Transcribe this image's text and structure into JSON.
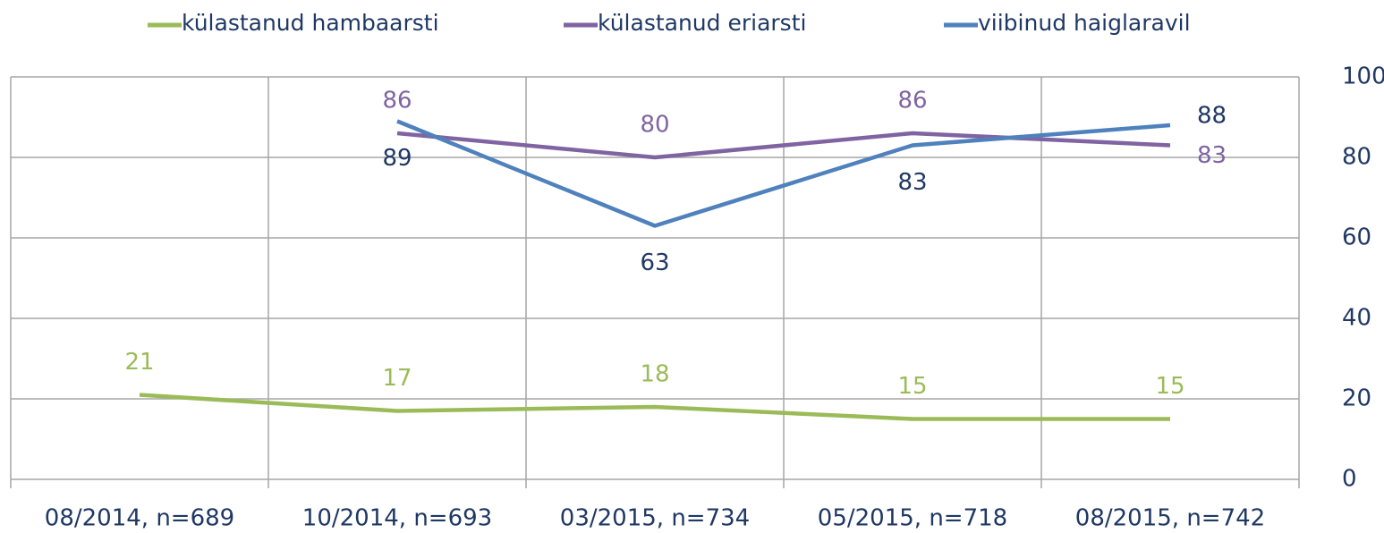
{
  "chart_data": {
    "type": "line",
    "categories": [
      "08/2014, n=689",
      "10/2014, n=693",
      "03/2015, n=734",
      "05/2015, n=718",
      "08/2015, n=742"
    ],
    "series": [
      {
        "name": "külastanud hambaarsti",
        "color": "#9bbb59",
        "values": [
          21,
          17,
          18,
          15,
          15
        ]
      },
      {
        "name": "külastanud eriarsti",
        "color": "#8064a2",
        "values": [
          null,
          86,
          80,
          86,
          83
        ]
      },
      {
        "name": "viibinud haiglaravil",
        "color": "#4f81bd",
        "values": [
          null,
          89,
          63,
          83,
          88
        ]
      }
    ],
    "ylim": [
      0,
      100
    ],
    "yticks": [
      0,
      20,
      40,
      60,
      80,
      100
    ],
    "grid": true,
    "legend": "top"
  }
}
